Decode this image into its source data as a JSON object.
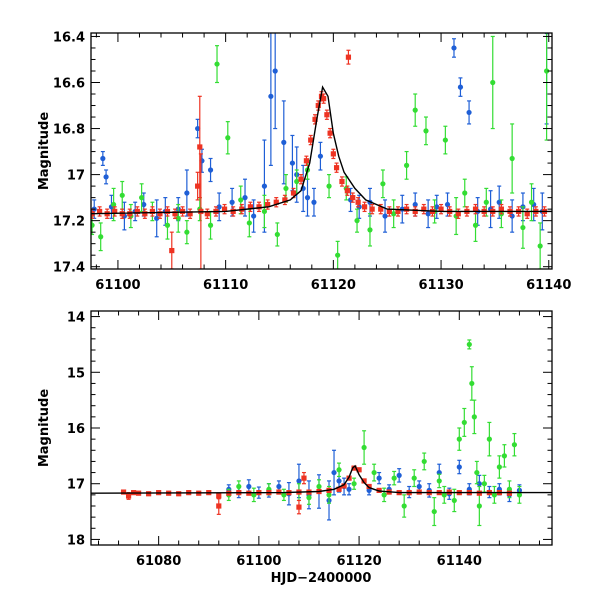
{
  "chart_data": [
    {
      "type": "scatter",
      "panel": "top",
      "title": "",
      "xlabel": "",
      "ylabel": "Magnitude",
      "xlim": [
        61097.5,
        61140.3
      ],
      "ylim": [
        17.41,
        16.385
      ],
      "y_inverted": true,
      "x_ticks": [
        61100,
        61110,
        61120,
        61130,
        61140
      ],
      "x_tick_labels": [
        "61100",
        "61110",
        "61120",
        "61130",
        "61140"
      ],
      "y_ticks": [
        16.4,
        16.6,
        16.8,
        17.0,
        17.2,
        17.4
      ],
      "y_tick_labels": [
        "16.4",
        "16.6",
        "16.8",
        "17",
        "17.2",
        "17.4"
      ],
      "colors": {
        "blue": "#1f5fd6",
        "green": "#33dd33",
        "red": "#ee3322",
        "model": "#000000"
      },
      "model_curve": {
        "x": [
          61097.5,
          61110,
          61114,
          61116,
          61117,
          61117.8,
          61118.5,
          61119,
          61119.5,
          61120,
          61120.5,
          61121,
          61122,
          61123,
          61125,
          61130,
          61140.3
        ],
        "y": [
          17.17,
          17.16,
          17.14,
          17.11,
          17.07,
          16.95,
          16.75,
          16.62,
          16.66,
          16.82,
          16.92,
          16.99,
          17.06,
          17.11,
          17.15,
          17.16,
          17.16
        ]
      },
      "series": [
        {
          "name": "blue",
          "x": [
            61097.8,
            61098.6,
            61098.9,
            61099.4,
            61100.6,
            61101.6,
            61102.4,
            61103.6,
            61104.4,
            61105.6,
            61106.4,
            61107.4,
            61107.8,
            61108.6,
            61109.4,
            61110.6,
            61111.8,
            61112.6,
            61113.6,
            61114.2,
            61114.6,
            61115.4,
            61116.2,
            61116.6,
            61117.2,
            61117.6,
            61118.2,
            61118.8,
            61121.6,
            61122.4,
            61123.4,
            61124.8,
            61126.4,
            61127.6,
            61128.8,
            61129.6,
            61130.6,
            61131.2,
            61131.8,
            61132.6,
            61133.4,
            61134.6,
            61135.4,
            61136.6,
            61137.6,
            61138.6,
            61139.4,
            61139.8
          ],
          "y": [
            17.15,
            16.93,
            17.01,
            17.14,
            17.18,
            17.16,
            17.13,
            17.19,
            17.16,
            17.15,
            17.08,
            16.8,
            16.94,
            16.98,
            17.14,
            17.12,
            17.1,
            17.18,
            17.05,
            16.66,
            16.55,
            16.86,
            16.95,
            17.0,
            17.06,
            17.1,
            17.12,
            16.92,
            17.11,
            17.14,
            17.12,
            17.18,
            17.15,
            17.13,
            17.17,
            17.14,
            17.13,
            16.45,
            16.62,
            16.73,
            17.16,
            17.15,
            17.12,
            17.18,
            17.14,
            17.13,
            17.16,
            16.38
          ],
          "err": [
            0.04,
            0.03,
            0.03,
            0.05,
            0.06,
            0.04,
            0.05,
            0.08,
            0.06,
            0.05,
            0.1,
            0.04,
            0.05,
            0.05,
            0.06,
            0.06,
            0.08,
            0.07,
            0.2,
            0.3,
            0.25,
            0.18,
            0.12,
            0.12,
            0.1,
            0.08,
            0.06,
            0.06,
            0.05,
            0.05,
            0.06,
            0.07,
            0.06,
            0.05,
            0.06,
            0.05,
            0.05,
            0.04,
            0.04,
            0.05,
            0.06,
            0.08,
            0.07,
            0.07,
            0.06,
            0.07,
            0.08,
            0.4
          ]
        },
        {
          "name": "green",
          "x": [
            61097.6,
            61098.4,
            61099.6,
            61100.4,
            61101.2,
            61102.2,
            61103.2,
            61104.6,
            61105.6,
            61106.4,
            61107.6,
            61108.6,
            61109.2,
            61110.2,
            61111.4,
            61112.2,
            61113.6,
            61114.8,
            61115.6,
            61116.6,
            61117.6,
            61119.6,
            61120.4,
            61121.2,
            61122.2,
            61123.4,
            61124.6,
            61125.6,
            61126.8,
            61127.6,
            61128.6,
            61129.4,
            61130.4,
            61131.4,
            61132.2,
            61133.2,
            61134.2,
            61134.8,
            61135.6,
            61136.6,
            61137.6,
            61138.4,
            61139.2,
            61139.8
          ],
          "y": [
            17.22,
            17.27,
            17.13,
            17.09,
            17.18,
            17.1,
            17.16,
            17.22,
            17.19,
            17.25,
            17.15,
            17.22,
            16.52,
            16.84,
            17.11,
            17.21,
            17.16,
            17.26,
            17.06,
            17.03,
            16.98,
            17.05,
            17.35,
            17.06,
            17.2,
            17.24,
            17.04,
            17.17,
            16.96,
            16.72,
            16.81,
            17.16,
            16.85,
            17.18,
            17.08,
            17.22,
            17.12,
            16.6,
            17.17,
            16.93,
            17.23,
            17.12,
            17.31,
            16.55
          ],
          "err": [
            0.04,
            0.06,
            0.07,
            0.06,
            0.05,
            0.06,
            0.04,
            0.06,
            0.06,
            0.05,
            0.05,
            0.06,
            0.08,
            0.07,
            0.06,
            0.06,
            0.07,
            0.05,
            0.06,
            0.05,
            0.04,
            0.05,
            0.06,
            0.05,
            0.05,
            0.07,
            0.06,
            0.06,
            0.06,
            0.07,
            0.06,
            0.05,
            0.06,
            0.08,
            0.06,
            0.07,
            0.06,
            0.2,
            0.06,
            0.15,
            0.09,
            0.08,
            0.1,
            0.3
          ]
        },
        {
          "name": "red",
          "x": [
            61097.6,
            61098.3,
            61099.0,
            61099.7,
            61100.4,
            61101.1,
            61101.8,
            61102.5,
            61103.2,
            61103.9,
            61104.6,
            61105.3,
            61106.0,
            61106.7,
            61107.4,
            61107.7,
            61108.3,
            61109.1,
            61109.9,
            61110.7,
            61111.5,
            61112.3,
            61113.1,
            61113.9,
            61114.7,
            61115.5,
            61116.3,
            61117.0,
            61117.5,
            61117.9,
            61118.3,
            61118.6,
            61118.9,
            61119.1,
            61119.4,
            61119.7,
            61120.0,
            61120.3,
            61120.8,
            61121.3,
            61121.8,
            61122.3,
            61122.9,
            61123.6,
            61124.4,
            61125.2,
            61126.0,
            61126.8,
            61127.6,
            61128.4,
            61129.2,
            61130.0,
            61130.8,
            61131.6,
            61132.4,
            61133.2,
            61134.0,
            61134.8,
            61135.6,
            61136.4,
            61137.2,
            61138.0,
            61138.8,
            61139.6,
            61105.0,
            61107.6,
            61121.4
          ],
          "y": [
            17.17,
            17.16,
            17.17,
            17.16,
            17.17,
            17.17,
            17.16,
            17.17,
            17.16,
            17.17,
            17.16,
            17.17,
            17.16,
            17.17,
            17.05,
            17.16,
            17.17,
            17.16,
            17.15,
            17.16,
            17.15,
            17.14,
            17.14,
            17.13,
            17.12,
            17.11,
            17.08,
            17.02,
            16.94,
            16.85,
            16.76,
            16.7,
            16.66,
            16.67,
            16.74,
            16.82,
            16.91,
            16.97,
            17.03,
            17.07,
            17.1,
            17.12,
            17.14,
            17.15,
            17.15,
            17.16,
            17.16,
            17.15,
            17.16,
            17.15,
            17.16,
            17.15,
            17.16,
            17.17,
            17.16,
            17.15,
            17.16,
            17.16,
            17.15,
            17.16,
            17.16,
            17.17,
            17.16,
            17.16,
            17.33,
            16.88,
            16.49
          ],
          "err": [
            0.02,
            0.02,
            0.02,
            0.02,
            0.02,
            0.02,
            0.02,
            0.02,
            0.02,
            0.02,
            0.02,
            0.02,
            0.02,
            0.02,
            0.06,
            0.25,
            0.02,
            0.02,
            0.02,
            0.02,
            0.02,
            0.02,
            0.02,
            0.02,
            0.02,
            0.02,
            0.02,
            0.02,
            0.02,
            0.02,
            0.02,
            0.02,
            0.02,
            0.02,
            0.02,
            0.02,
            0.02,
            0.02,
            0.02,
            0.02,
            0.02,
            0.02,
            0.02,
            0.02,
            0.02,
            0.02,
            0.02,
            0.02,
            0.02,
            0.02,
            0.02,
            0.02,
            0.02,
            0.02,
            0.02,
            0.02,
            0.02,
            0.02,
            0.02,
            0.02,
            0.02,
            0.02,
            0.02,
            0.02,
            0.08,
            0.22,
            0.03
          ]
        }
      ]
    },
    {
      "type": "scatter",
      "panel": "bottom",
      "title": "",
      "xlabel": "HJD−2400000",
      "ylabel": "Magnitude",
      "xlim": [
        61066.5,
        61158.5
      ],
      "ylim": [
        18.1,
        13.9
      ],
      "y_inverted": true,
      "x_ticks": [
        61080,
        61100,
        61120,
        61140
      ],
      "x_tick_labels": [
        "61080",
        "61100",
        "61120",
        "61140"
      ],
      "y_ticks": [
        14,
        15,
        16,
        17,
        18
      ],
      "y_tick_labels": [
        "14",
        "15",
        "16",
        "17",
        "18"
      ],
      "colors": {
        "blue": "#1f5fd6",
        "green": "#33dd33",
        "red": "#ee3322",
        "model": "#000000"
      },
      "model_curve": {
        "x": [
          61066.5,
          61105,
          61112,
          61115,
          61117,
          61118,
          61118.7,
          61119.2,
          61120,
          61121,
          61122,
          61124,
          61128,
          61158.5
        ],
        "y": [
          17.17,
          17.16,
          17.14,
          17.1,
          17.02,
          16.88,
          16.72,
          16.68,
          16.84,
          16.98,
          17.07,
          17.13,
          17.16,
          17.16
        ]
      },
      "series": [
        {
          "name": "blue",
          "x": [
            61094,
            61096,
            61098,
            61100,
            61102,
            61104,
            61106,
            61108,
            61110,
            61112,
            61114,
            61115,
            61116,
            61117,
            61118,
            61122,
            61124,
            61126,
            61128,
            61130,
            61132,
            61134,
            61136,
            61138,
            61140,
            61142,
            61144,
            61146,
            61148,
            61150,
            61152
          ],
          "y": [
            17.1,
            17.15,
            17.05,
            17.16,
            17.12,
            17.05,
            17.18,
            16.95,
            17.2,
            17.14,
            17.3,
            16.8,
            16.95,
            17.05,
            17.1,
            17.12,
            16.9,
            17.1,
            16.85,
            17.15,
            17.05,
            17.12,
            16.8,
            17.18,
            16.7,
            17.1,
            17.0,
            17.15,
            17.1,
            17.2,
            17.12
          ],
          "err": [
            0.08,
            0.1,
            0.12,
            0.1,
            0.12,
            0.1,
            0.2,
            0.3,
            0.25,
            0.3,
            0.35,
            0.4,
            0.2,
            0.15,
            0.1,
            0.08,
            0.1,
            0.08,
            0.12,
            0.1,
            0.1,
            0.12,
            0.15,
            0.1,
            0.12,
            0.1,
            0.15,
            0.1,
            0.1,
            0.12,
            0.1
          ]
        },
        {
          "name": "green",
          "x": [
            61094,
            61096,
            61099,
            61102,
            61105,
            61108,
            61110,
            61112,
            61114,
            61116,
            61119,
            61121,
            61123,
            61125,
            61127,
            61129,
            61131,
            61133,
            61135,
            61136,
            61137,
            61139,
            61140,
            61141,
            61142,
            61142.5,
            61143,
            61143.5,
            61144,
            61145,
            61146,
            61147,
            61148,
            61149,
            61150,
            61151,
            61152
          ],
          "y": [
            17.2,
            17.05,
            17.2,
            17.1,
            17.2,
            17.15,
            17.25,
            17.05,
            17.2,
            16.75,
            17.0,
            16.35,
            16.8,
            17.2,
            16.9,
            17.4,
            16.9,
            16.6,
            17.5,
            16.95,
            17.2,
            17.3,
            16.2,
            15.9,
            14.5,
            15.2,
            15.8,
            16.8,
            17.4,
            17.0,
            16.2,
            17.2,
            16.7,
            16.5,
            17.1,
            16.3,
            17.2
          ],
          "err": [
            0.1,
            0.1,
            0.12,
            0.1,
            0.1,
            0.15,
            0.12,
            0.12,
            0.15,
            0.12,
            0.1,
            0.3,
            0.15,
            0.12,
            0.12,
            0.2,
            0.15,
            0.15,
            0.25,
            0.12,
            0.15,
            0.2,
            0.2,
            0.25,
            0.08,
            0.3,
            0.3,
            0.2,
            0.35,
            0.15,
            0.3,
            0.15,
            0.2,
            0.2,
            0.15,
            0.2,
            0.15
          ]
        },
        {
          "name": "red",
          "x": [
            61073,
            61074,
            61075,
            61076,
            61078,
            61080,
            61082,
            61084,
            61086,
            61088,
            61090,
            61092,
            61094,
            61096,
            61098,
            61100,
            61102,
            61104,
            61106,
            61108,
            61110,
            61112,
            61114,
            61116,
            61117,
            61118,
            61119,
            61120,
            61121,
            61122,
            61124,
            61126,
            61128,
            61130,
            61132,
            61134,
            61136,
            61138,
            61140,
            61142,
            61144,
            61146,
            61148,
            61150,
            61092,
            61108,
            61109
          ],
          "y": [
            17.15,
            17.22,
            17.16,
            17.17,
            17.18,
            17.16,
            17.17,
            17.18,
            17.16,
            17.17,
            17.16,
            17.22,
            17.17,
            17.16,
            17.17,
            17.16,
            17.16,
            17.15,
            17.16,
            17.15,
            17.15,
            17.14,
            17.12,
            17.1,
            17.04,
            16.9,
            16.72,
            16.75,
            16.95,
            17.05,
            17.12,
            17.15,
            17.16,
            17.16,
            17.15,
            17.16,
            17.16,
            17.15,
            17.16,
            17.16,
            17.17,
            17.16,
            17.16,
            17.17,
            17.4,
            17.42,
            16.9
          ],
          "err": [
            0.03,
            0.06,
            0.03,
            0.03,
            0.03,
            0.03,
            0.03,
            0.03,
            0.03,
            0.03,
            0.03,
            0.05,
            0.03,
            0.03,
            0.03,
            0.03,
            0.03,
            0.03,
            0.03,
            0.03,
            0.03,
            0.03,
            0.03,
            0.03,
            0.03,
            0.03,
            0.03,
            0.03,
            0.03,
            0.03,
            0.03,
            0.03,
            0.03,
            0.03,
            0.03,
            0.03,
            0.03,
            0.03,
            0.03,
            0.03,
            0.03,
            0.03,
            0.03,
            0.03,
            0.15,
            0.12,
            0.1
          ]
        }
      ]
    }
  ]
}
